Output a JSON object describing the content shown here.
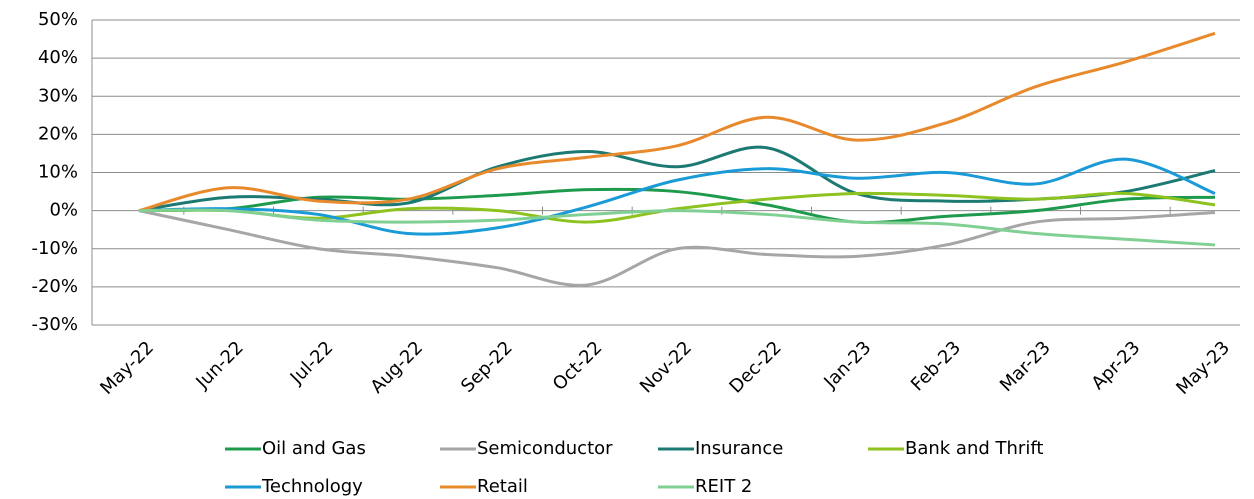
{
  "chart_data": {
    "type": "line",
    "categories": [
      "May-22",
      "Jun-22",
      "Jul-22",
      "Aug-22",
      "Sep-22",
      "Oct-22",
      "Nov-22",
      "Dec-22",
      "Jan-23",
      "Feb-23",
      "Mar-23",
      "Apr-23",
      "May-23"
    ],
    "series": [
      {
        "name": "Oil and Gas",
        "color": "#1e9a4c",
        "values": [
          0,
          0.5,
          3.5,
          3,
          4,
          5.5,
          5,
          1.5,
          -3,
          -1.5,
          0,
          3,
          3.5
        ]
      },
      {
        "name": "Semiconductor",
        "color": "#a6a6a6",
        "values": [
          0,
          -5,
          -10,
          -12,
          -15,
          -19.5,
          -10,
          -11.5,
          -12,
          -9,
          -3,
          -2,
          -0.5
        ]
      },
      {
        "name": "Insurance",
        "color": "#1c7a72",
        "values": [
          0,
          3.5,
          3,
          2,
          11.5,
          15.5,
          11.5,
          16.5,
          4.5,
          2.5,
          3,
          5,
          10.5
        ]
      },
      {
        "name": "Bank and Thrift",
        "color": "#8dc21f",
        "values": [
          0,
          0,
          -2,
          0.5,
          0,
          -3,
          0.5,
          3,
          4.5,
          4,
          3,
          4.5,
          1.5
        ]
      },
      {
        "name": "Technology",
        "color": "#1a9ad6",
        "values": [
          0,
          0.5,
          -1,
          -6,
          -4.5,
          1,
          8,
          11,
          8.5,
          10,
          7,
          13.5,
          4.5
        ]
      },
      {
        "name": "Retail",
        "color": "#e8892b",
        "values": [
          0,
          6,
          2.5,
          3,
          11,
          14,
          17,
          24.5,
          18.5,
          23,
          32.5,
          39,
          46.5
        ]
      },
      {
        "name": "REIT 2",
        "color": "#80cf93",
        "values": [
          0,
          0,
          -2.5,
          -3,
          -2.5,
          -1,
          0,
          -1,
          -3,
          -3.5,
          -6,
          -7.5,
          -9
        ]
      }
    ],
    "ylim": [
      -30,
      50
    ],
    "yticks": [
      {
        "value": -30,
        "label": "-30%"
      },
      {
        "value": -20,
        "label": "-20%"
      },
      {
        "value": -10,
        "label": "-10%"
      },
      {
        "value": 0,
        "label": "0%"
      },
      {
        "value": 10,
        "label": "10%"
      },
      {
        "value": 20,
        "label": "20%"
      },
      {
        "value": 30,
        "label": "30%"
      },
      {
        "value": 40,
        "label": "40%"
      },
      {
        "value": 50,
        "label": "50%"
      }
    ],
    "grid": true
  }
}
